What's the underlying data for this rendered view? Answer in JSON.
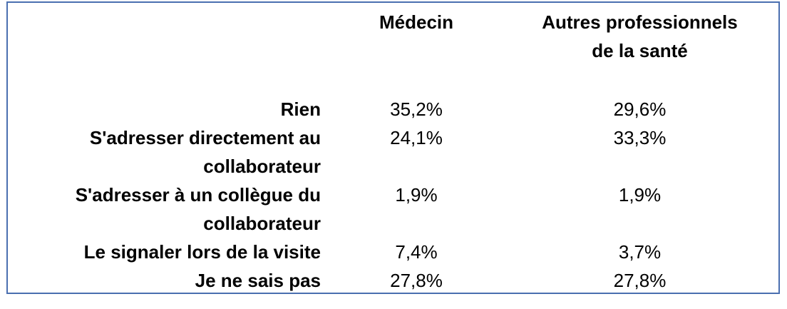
{
  "chart_data": {
    "type": "table",
    "columns": [
      "Médecin",
      "Autres professionnels de la santé"
    ],
    "header": {
      "col1": "Médecin",
      "col2_line1": "Autres professionnels",
      "col2_line2": "de la santé"
    },
    "rows": [
      {
        "label_line1": "Rien",
        "label_line2": "",
        "values": [
          "35,2%",
          "29,6%"
        ]
      },
      {
        "label_line1": "S'adresser directement au",
        "label_line2": "collaborateur",
        "values": [
          "24,1%",
          "33,3%"
        ]
      },
      {
        "label_line1": "S'adresser à un collègue du",
        "label_line2": "collaborateur",
        "values": [
          "1,9%",
          "1,9%"
        ]
      },
      {
        "label_line1": "Le signaler lors de la visite",
        "label_line2": "",
        "values": [
          "7,4%",
          "3,7%"
        ]
      },
      {
        "label_line1": "Je ne sais pas",
        "label_line2": "",
        "values": [
          "27,8%",
          "27,8%"
        ]
      }
    ]
  },
  "colors": {
    "border": "#4a6fb0",
    "text": "#000000",
    "background": "#ffffff"
  }
}
